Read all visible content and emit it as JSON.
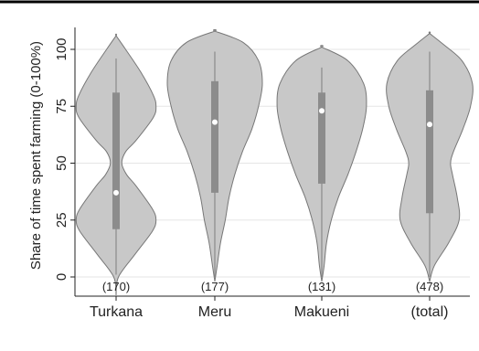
{
  "chart_data": {
    "type": "violin",
    "title": "",
    "xlabel": "",
    "ylabel": "Share of time spent farming (0-100%)",
    "ylim": [
      -10,
      112
    ],
    "yticks": [
      0,
      25,
      50,
      75,
      100
    ],
    "grid": true,
    "categories": [
      "Turkana",
      "Meru",
      "Makueni",
      "(total)"
    ],
    "sample_sizes": [
      "(170)",
      "(177)",
      "(131)",
      "(478)"
    ],
    "colors": {
      "violin_fill": "#c8c8c8",
      "violin_stroke": "#777777",
      "box_fill": "#8c8c8c",
      "median_dot": "#ffffff",
      "grid": "#e6e6e6",
      "axis": "#222222",
      "top_rule": "#000000"
    },
    "series": [
      {
        "stats": {
          "min": 1,
          "q1": 21,
          "median": 37,
          "q3": 81,
          "max": 96
        },
        "density": [
          [
            -8,
            0
          ],
          [
            0,
            0.05
          ],
          [
            10,
            0.4
          ],
          [
            20,
            0.76
          ],
          [
            25,
            0.84
          ],
          [
            30,
            0.76
          ],
          [
            40,
            0.42
          ],
          [
            45,
            0.22
          ],
          [
            50,
            0.12
          ],
          [
            55,
            0.2
          ],
          [
            60,
            0.42
          ],
          [
            70,
            0.78
          ],
          [
            75,
            0.84
          ],
          [
            80,
            0.78
          ],
          [
            90,
            0.52
          ],
          [
            100,
            0.2
          ],
          [
            106,
            0
          ]
        ]
      },
      {
        "stats": {
          "min": 0,
          "q1": 37,
          "median": 68,
          "q3": 86,
          "max": 99
        },
        "density": [
          [
            -2,
            0
          ],
          [
            5,
            0.05
          ],
          [
            15,
            0.12
          ],
          [
            25,
            0.22
          ],
          [
            35,
            0.3
          ],
          [
            45,
            0.42
          ],
          [
            55,
            0.58
          ],
          [
            65,
            0.78
          ],
          [
            75,
            0.92
          ],
          [
            85,
            1.0
          ],
          [
            95,
            0.92
          ],
          [
            103,
            0.6
          ],
          [
            108,
            0
          ]
        ]
      },
      {
        "stats": {
          "min": 0,
          "q1": 41,
          "median": 73,
          "q3": 81,
          "max": 92
        },
        "density": [
          [
            -2,
            0
          ],
          [
            5,
            0.05
          ],
          [
            15,
            0.1
          ],
          [
            25,
            0.2
          ],
          [
            35,
            0.35
          ],
          [
            45,
            0.55
          ],
          [
            55,
            0.72
          ],
          [
            65,
            0.86
          ],
          [
            75,
            0.94
          ],
          [
            85,
            0.88
          ],
          [
            95,
            0.55
          ],
          [
            101,
            0
          ]
        ]
      },
      {
        "stats": {
          "min": 0,
          "q1": 28,
          "median": 67,
          "q3": 82,
          "max": 99
        },
        "density": [
          [
            -2,
            0
          ],
          [
            5,
            0.1
          ],
          [
            15,
            0.4
          ],
          [
            25,
            0.62
          ],
          [
            35,
            0.58
          ],
          [
            45,
            0.48
          ],
          [
            50,
            0.44
          ],
          [
            55,
            0.5
          ],
          [
            65,
            0.7
          ],
          [
            75,
            0.86
          ],
          [
            85,
            0.9
          ],
          [
            95,
            0.68
          ],
          [
            102,
            0.3
          ],
          [
            107,
            0
          ]
        ]
      }
    ]
  }
}
